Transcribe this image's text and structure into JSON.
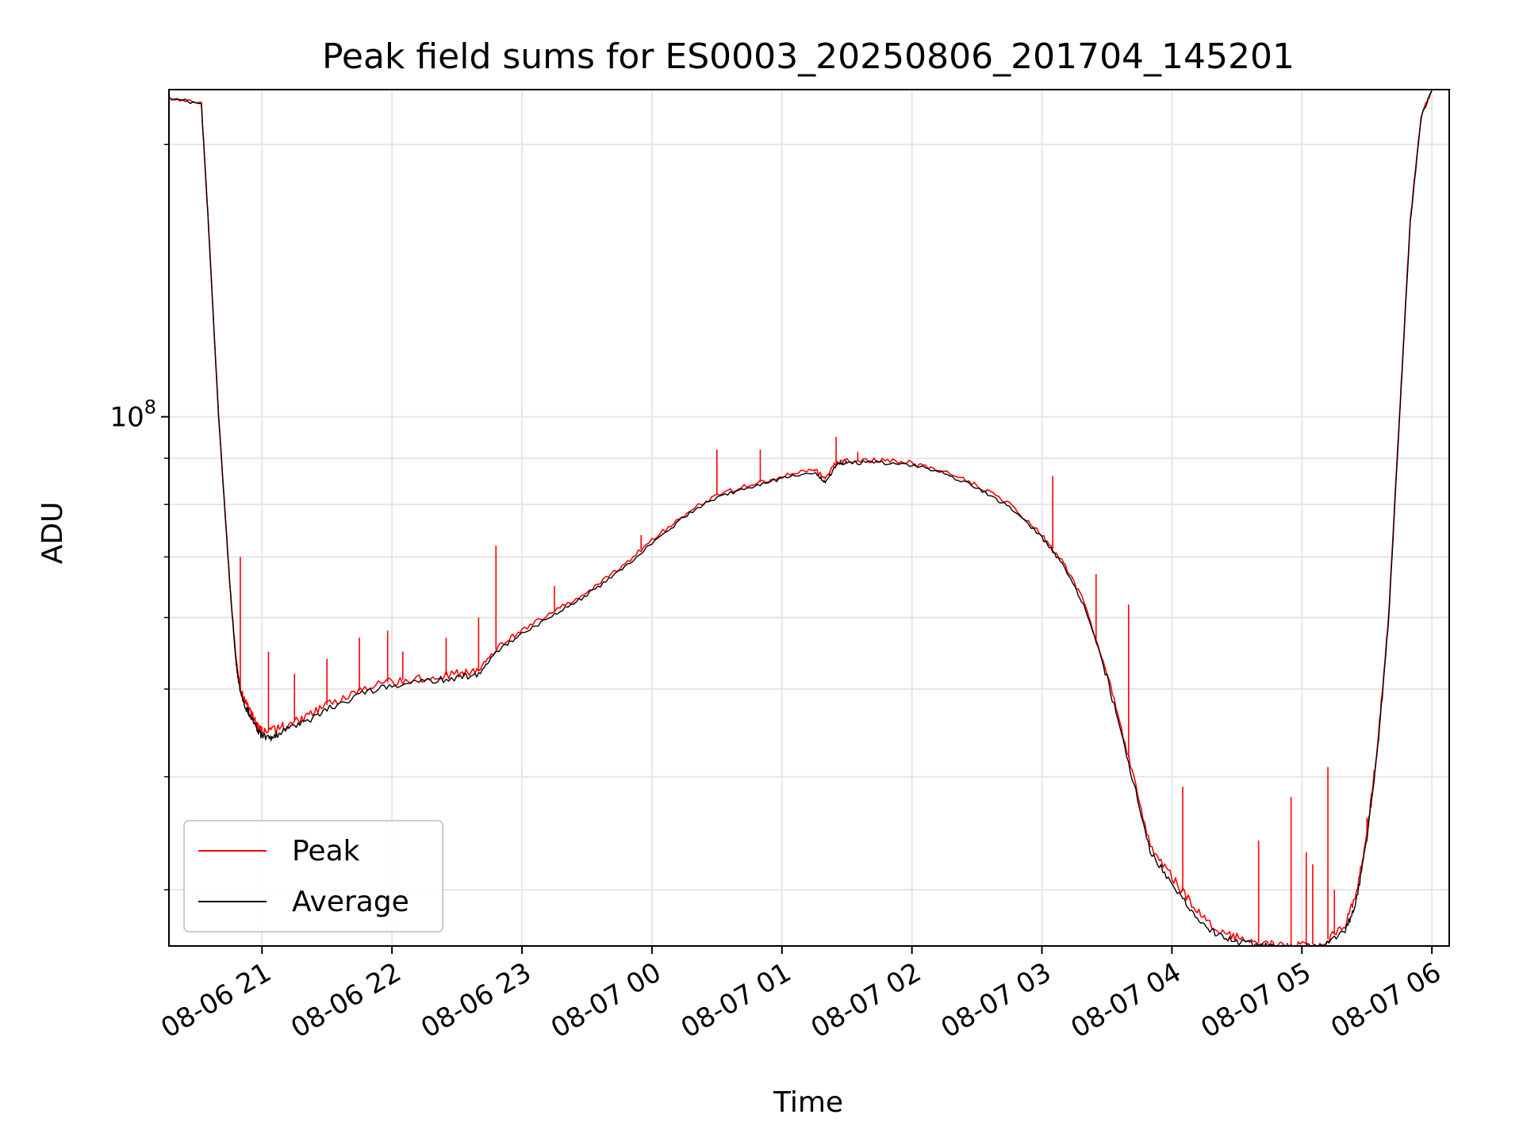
{
  "chart_data": {
    "type": "line",
    "title": "Peak field sums for ES0003_20250806_201704_145201",
    "xlabel": "Time",
    "ylabel": "ADU",
    "y_scale": "log",
    "x_axis": {
      "kind": "datetime",
      "ticks": [
        {
          "t": "2025-08-06T21:00:00",
          "label": "08-06 21"
        },
        {
          "t": "2025-08-06T22:00:00",
          "label": "08-06 22"
        },
        {
          "t": "2025-08-06T23:00:00",
          "label": "08-06 23"
        },
        {
          "t": "2025-08-07T00:00:00",
          "label": "08-07 00"
        },
        {
          "t": "2025-08-07T01:00:00",
          "label": "08-07 01"
        },
        {
          "t": "2025-08-07T02:00:00",
          "label": "08-07 02"
        },
        {
          "t": "2025-08-07T03:00:00",
          "label": "08-07 03"
        },
        {
          "t": "2025-08-07T04:00:00",
          "label": "08-07 04"
        },
        {
          "t": "2025-08-07T05:00:00",
          "label": "08-07 05"
        },
        {
          "t": "2025-08-07T06:00:00",
          "label": "08-07 06"
        }
      ],
      "xlim": [
        "2025-08-06T20:17:04",
        "2025-08-07T06:08:00"
      ]
    },
    "y_axis": {
      "major_ticks": [
        {
          "value": 100000000,
          "base": "10",
          "exp": "8"
        }
      ],
      "minor_ticks": [
        30000000,
        40000000,
        50000000,
        60000000,
        70000000,
        80000000,
        90000000,
        200000000
      ],
      "ylim": [
        26000000,
        230000000
      ]
    },
    "grid": true,
    "legend": {
      "placement": "lower-left",
      "entries": [
        {
          "label": "Peak",
          "color": "#ff0000"
        },
        {
          "label": "Average",
          "color": "#000000"
        }
      ]
    },
    "series": [
      {
        "name": "Peak",
        "color": "#ff0000",
        "x": [
          "2025-08-06T20:17:04",
          "2025-08-06T20:32:00",
          "20:35",
          "20:40",
          "20:45",
          "20:48",
          "20:50",
          "20:52",
          "20:55",
          "20:58",
          "21:00",
          "21:05",
          "21:10",
          "21:20",
          "21:30",
          "21:45",
          "22:00",
          "22:15",
          "22:30",
          "22:40",
          "22:50",
          "23:00",
          "23:15",
          "23:30",
          "23:45",
          "2025-08-07T00:00:00",
          "00:15",
          "00:30",
          "00:45",
          "01:00",
          "01:15",
          "01:20",
          "01:25",
          "01:30",
          "01:45",
          "02:00",
          "02:15",
          "02:30",
          "02:45",
          "03:00",
          "03:10",
          "03:20",
          "03:30",
          "03:40",
          "03:50",
          "04:00",
          "04:10",
          "04:20",
          "04:30",
          "04:40",
          "04:50",
          "05:00",
          "05:10",
          "05:20",
          "05:25",
          "05:30",
          "05:35",
          "05:40",
          "05:45",
          "05:50",
          "05:55",
          "06:00"
        ],
        "y": [
          225000000,
          222000000,
          168000000,
          100000000,
          66000000,
          54000000,
          50000000,
          48500000,
          47000000,
          45500000,
          45000000,
          45000000,
          45500000,
          46500000,
          48000000,
          49800000,
          51000000,
          51500000,
          52000000,
          52500000,
          56000000,
          58000000,
          61000000,
          64000000,
          68000000,
          73000000,
          78000000,
          82000000,
          84000000,
          86000000,
          87500000,
          85500000,
          89000000,
          89500000,
          89500000,
          89000000,
          87000000,
          84000000,
          80000000,
          74000000,
          69000000,
          62000000,
          52000000,
          42000000,
          33500000,
          31000000,
          28800000,
          27200000,
          26600000,
          26200000,
          26000000,
          26000000,
          26200000,
          27500000,
          29500000,
          34500000,
          43500000,
          60000000,
          100000000,
          165000000,
          215000000,
          230000000
        ],
        "spikes": [
          {
            "x": "20:50",
            "y": 70000000
          },
          {
            "x": "21:03",
            "y": 55000000
          },
          {
            "x": "21:15",
            "y": 52000000
          },
          {
            "x": "21:30",
            "y": 54000000
          },
          {
            "x": "21:45",
            "y": 57000000
          },
          {
            "x": "21:58",
            "y": 58000000
          },
          {
            "x": "22:05",
            "y": 55000000
          },
          {
            "x": "22:25",
            "y": 57000000
          },
          {
            "x": "22:40",
            "y": 60000000
          },
          {
            "x": "22:48",
            "y": 72000000
          },
          {
            "x": "23:15",
            "y": 65000000
          },
          {
            "x": "23:55",
            "y": 74000000
          },
          {
            "x": "00:30",
            "y": 92000000
          },
          {
            "x": "00:50",
            "y": 92000000
          },
          {
            "x": "01:15",
            "y": 87000000
          },
          {
            "x": "01:25",
            "y": 95000000
          },
          {
            "x": "01:35",
            "y": 91500000
          },
          {
            "x": "03:05",
            "y": 86000000
          },
          {
            "x": "03:25",
            "y": 67000000
          },
          {
            "x": "03:40",
            "y": 62000000
          },
          {
            "x": "04:05",
            "y": 39000000
          },
          {
            "x": "04:40",
            "y": 34000000
          },
          {
            "x": "04:55",
            "y": 38000000
          },
          {
            "x": "05:02",
            "y": 33000000
          },
          {
            "x": "05:05",
            "y": 32000000
          },
          {
            "x": "05:12",
            "y": 41000000
          },
          {
            "x": "05:15",
            "y": 30000000
          },
          {
            "x": "05:30",
            "y": 36000000
          },
          {
            "x": "05:32",
            "y": 37000000
          }
        ]
      },
      {
        "name": "Average",
        "color": "#000000",
        "x": [
          "2025-08-06T20:17:04",
          "2025-08-06T20:32:00",
          "20:35",
          "20:40",
          "20:45",
          "20:48",
          "20:50",
          "20:52",
          "20:55",
          "20:58",
          "21:00",
          "21:05",
          "21:10",
          "21:20",
          "21:30",
          "21:45",
          "22:00",
          "22:15",
          "22:30",
          "22:40",
          "22:50",
          "23:00",
          "23:15",
          "23:30",
          "23:45",
          "2025-08-07T00:00:00",
          "00:15",
          "00:30",
          "00:45",
          "01:00",
          "01:15",
          "01:20",
          "01:25",
          "01:30",
          "01:45",
          "02:00",
          "02:15",
          "02:30",
          "02:45",
          "03:00",
          "03:10",
          "03:20",
          "03:30",
          "03:40",
          "03:50",
          "04:00",
          "04:10",
          "04:20",
          "04:30",
          "04:40",
          "04:50",
          "05:00",
          "05:10",
          "05:20",
          "05:25",
          "05:30",
          "05:35",
          "05:40",
          "05:45",
          "05:50",
          "05:55",
          "06:00"
        ],
        "y": [
          225000000,
          222000000,
          168000000,
          100000000,
          66000000,
          53500000,
          49500000,
          48000000,
          46500000,
          45000000,
          44300000,
          44200000,
          45000000,
          46000000,
          47500000,
          49300000,
          50500000,
          51000000,
          51500000,
          52000000,
          55500000,
          57500000,
          60500000,
          63500000,
          67500000,
          72500000,
          77500000,
          81500000,
          83500000,
          85500000,
          87000000,
          84500000,
          88500000,
          89000000,
          89000000,
          88500000,
          86500000,
          83500000,
          79500000,
          73500000,
          68500000,
          61500000,
          51500000,
          41500000,
          33000000,
          30500000,
          28300000,
          26800000,
          26300000,
          26000000,
          25900000,
          25900000,
          26000000,
          27000000,
          29000000,
          34000000,
          43000000,
          59500000,
          99000000,
          164000000,
          214000000,
          230000000
        ]
      }
    ]
  }
}
